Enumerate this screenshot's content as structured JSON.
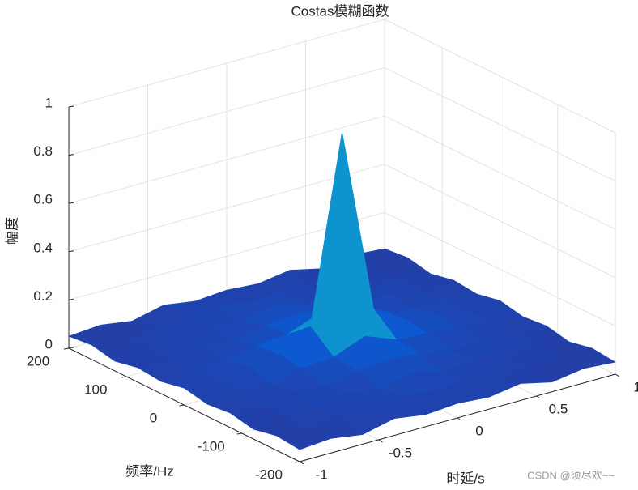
{
  "chart_data": {
    "type": "surface",
    "title": "Costas模糊函数",
    "x_label": "时延/s",
    "y_label": "频率/Hz",
    "z_label": "幅度",
    "x": [
      -1,
      -0.8,
      -0.6,
      -0.4,
      -0.2,
      0,
      0.2,
      0.4,
      0.6,
      0.8,
      1
    ],
    "y": [
      -200,
      -160,
      -120,
      -80,
      -40,
      0,
      40,
      80,
      120,
      160,
      200
    ],
    "z": [
      [
        0.05,
        0.06,
        0.04,
        0.07,
        0.05,
        0.06,
        0.05,
        0.07,
        0.04,
        0.06,
        0.05
      ],
      [
        0.06,
        0.04,
        0.07,
        0.05,
        0.08,
        0.06,
        0.07,
        0.05,
        0.06,
        0.04,
        0.06
      ],
      [
        0.04,
        0.07,
        0.05,
        0.08,
        0.06,
        0.09,
        0.06,
        0.08,
        0.05,
        0.07,
        0.04
      ],
      [
        0.06,
        0.05,
        0.08,
        0.06,
        0.09,
        0.1,
        0.09,
        0.06,
        0.08,
        0.05,
        0.06
      ],
      [
        0.05,
        0.07,
        0.06,
        0.09,
        0.1,
        0.15,
        0.1,
        0.09,
        0.06,
        0.07,
        0.05
      ],
      [
        0.07,
        0.06,
        0.09,
        0.1,
        0.18,
        0.95,
        0.18,
        0.1,
        0.09,
        0.06,
        0.07
      ],
      [
        0.05,
        0.07,
        0.06,
        0.09,
        0.1,
        0.15,
        0.1,
        0.09,
        0.06,
        0.07,
        0.05
      ],
      [
        0.06,
        0.05,
        0.08,
        0.06,
        0.09,
        0.1,
        0.09,
        0.06,
        0.08,
        0.05,
        0.06
      ],
      [
        0.04,
        0.07,
        0.05,
        0.08,
        0.06,
        0.09,
        0.06,
        0.08,
        0.05,
        0.07,
        0.04
      ],
      [
        0.06,
        0.04,
        0.07,
        0.05,
        0.08,
        0.06,
        0.07,
        0.05,
        0.06,
        0.04,
        0.06
      ],
      [
        0.05,
        0.06,
        0.04,
        0.07,
        0.05,
        0.06,
        0.05,
        0.07,
        0.04,
        0.06,
        0.05
      ]
    ],
    "xlim": [
      -1,
      1
    ],
    "xticks": [
      -1,
      -0.5,
      0,
      0.5,
      1
    ],
    "ylim": [
      -200,
      200
    ],
    "yticks": [
      -200,
      -100,
      0,
      100,
      200
    ],
    "zlim": [
      0,
      1
    ],
    "zticks": [
      0,
      0.2,
      0.4,
      0.6,
      0.8,
      1
    ],
    "grid": true,
    "colormap": [
      "#352a87",
      "#0363e1",
      "#1485d4",
      "#06a7c6",
      "#38b99e",
      "#92bf73",
      "#d9ba56",
      "#f9fb0e"
    ],
    "watermark": "CSDN @须尽欢~~"
  }
}
